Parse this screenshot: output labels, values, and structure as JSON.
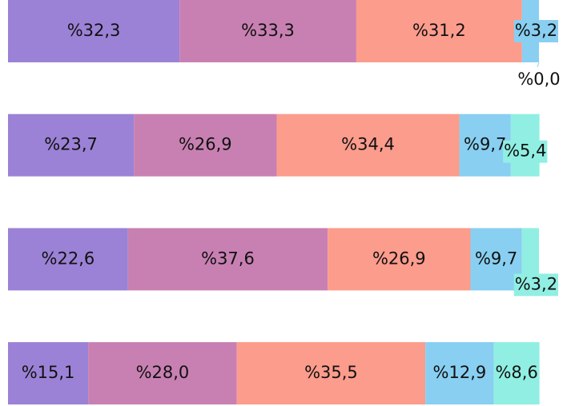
{
  "chart_data": {
    "type": "stacked-barh",
    "xlim": [
      0,
      100
    ],
    "series": [
      {
        "color": "#9b82d6",
        "values": [
          32.3,
          23.7,
          22.6,
          15.1
        ],
        "value_labels": [
          "%32,3",
          "%23,7",
          "%22,6",
          "%15,1"
        ]
      },
      {
        "color": "#c880b2",
        "values": [
          33.3,
          26.9,
          37.6,
          28.0
        ],
        "value_labels": [
          "%33,3",
          "%26,9",
          "%37,6",
          "%28,0"
        ]
      },
      {
        "color": "#fc9c8c",
        "values": [
          31.2,
          34.4,
          26.9,
          35.5
        ],
        "value_labels": [
          "%31,2",
          "%34,4",
          "%26,9",
          "%35,5"
        ]
      },
      {
        "color": "#88cff1",
        "values": [
          3.2,
          9.7,
          9.7,
          12.9
        ],
        "value_labels": [
          "%3,2",
          "%9,7",
          "%9,7",
          "%12,9"
        ]
      },
      {
        "color": "#90efe2",
        "values": [
          0.0,
          5.4,
          3.2,
          8.6
        ],
        "value_labels": [
          "%0,0",
          "%5,4",
          "%3,2",
          "%8,6"
        ]
      }
    ]
  }
}
